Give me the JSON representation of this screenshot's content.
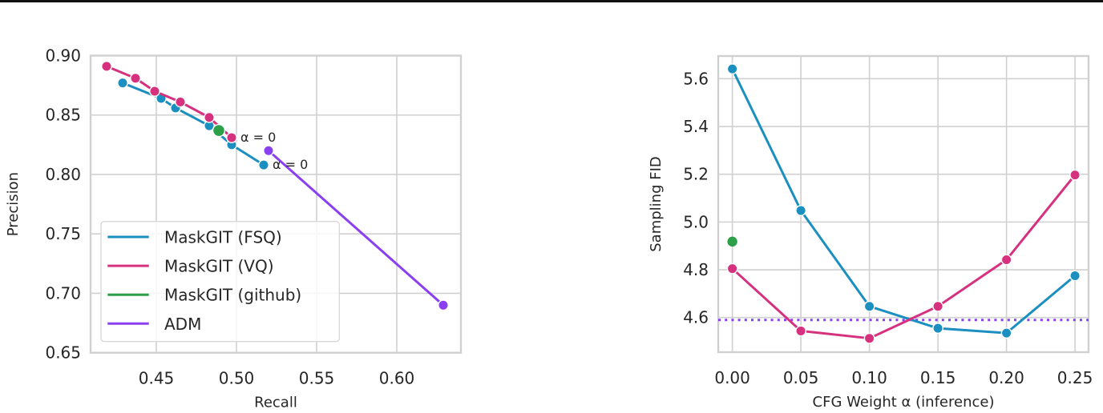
{
  "colors": {
    "fsq": "#1a8fc0",
    "vq": "#d6317f",
    "github": "#2ca048",
    "adm": "#8a3ff0",
    "grid": "#d0d0d0",
    "text": "#262626"
  },
  "chart_data": [
    {
      "type": "line",
      "title": "",
      "xlabel": "Recall",
      "ylabel": "Precision",
      "xlim": [
        0.409,
        0.64
      ],
      "ylim": [
        0.65,
        0.9
      ],
      "xticks": [
        "0.45",
        "0.50",
        "0.55",
        "0.60"
      ],
      "yticks": [
        "0.65",
        "0.70",
        "0.75",
        "0.80",
        "0.85",
        "0.90"
      ],
      "grid": true,
      "legend_position": "lower left",
      "legend": [
        "MaskGIT (FSQ)",
        "MaskGIT (VQ)",
        "MaskGIT (github)",
        "ADM"
      ],
      "series": [
        {
          "name": "MaskGIT (FSQ)",
          "color_key": "fsq",
          "x": [
            0.429,
            0.453,
            0.462,
            0.483,
            0.497,
            0.517
          ],
          "y": [
            0.877,
            0.864,
            0.856,
            0.841,
            0.825,
            0.808
          ]
        },
        {
          "name": "MaskGIT (VQ)",
          "color_key": "vq",
          "x": [
            0.419,
            0.437,
            0.449,
            0.465,
            0.483,
            0.497
          ],
          "y": [
            0.891,
            0.881,
            0.87,
            0.861,
            0.848,
            0.831
          ]
        },
        {
          "name": "MaskGIT (github)",
          "color_key": "github",
          "x": [
            0.489
          ],
          "y": [
            0.837
          ]
        },
        {
          "name": "ADM",
          "color_key": "adm",
          "x": [
            0.52,
            0.629
          ],
          "y": [
            0.82,
            0.69
          ]
        }
      ],
      "annotations": [
        {
          "text": "α = 0",
          "x": 0.497,
          "y": 0.831,
          "series": "MaskGIT (VQ)"
        },
        {
          "text": "α = 0",
          "x": 0.517,
          "y": 0.808,
          "series": "MaskGIT (FSQ)"
        }
      ]
    },
    {
      "type": "line",
      "title": "",
      "xlabel": "CFG Weight α (inference)",
      "ylabel": "Sampling FID",
      "xlim": [
        -0.0103,
        0.2599
      ],
      "ylim": [
        4.455,
        5.695
      ],
      "xticks": [
        "0.00",
        "0.05",
        "0.10",
        "0.15",
        "0.20",
        "0.25"
      ],
      "yticks": [
        "4.6",
        "4.8",
        "5.0",
        "5.2",
        "5.4",
        "5.6"
      ],
      "grid": true,
      "series": [
        {
          "name": "MaskGIT (FSQ)",
          "color_key": "fsq",
          "x": [
            0.0,
            0.05,
            0.1,
            0.15,
            0.2,
            0.25
          ],
          "y": [
            5.641,
            5.048,
            4.647,
            4.555,
            4.535,
            4.775
          ]
        },
        {
          "name": "MaskGIT (VQ)",
          "color_key": "vq",
          "x": [
            0.0,
            0.05,
            0.1,
            0.15,
            0.2,
            0.25
          ],
          "y": [
            4.805,
            4.544,
            4.513,
            4.647,
            4.842,
            5.197
          ]
        },
        {
          "name": "MaskGIT (github)",
          "color_key": "github",
          "x": [
            0.0
          ],
          "y": [
            4.918
          ]
        }
      ],
      "reference_lines": [
        {
          "name": "ADM",
          "color_key": "adm",
          "style": "dotted",
          "y": 4.59
        }
      ]
    }
  ]
}
